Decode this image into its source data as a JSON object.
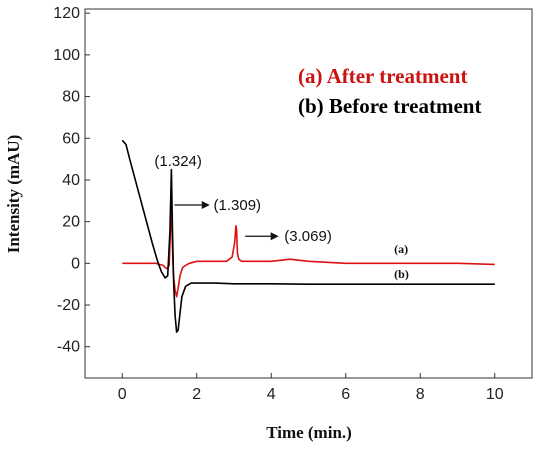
{
  "chart_data": {
    "type": "line",
    "title": "",
    "xlabel": "Time (min.)",
    "ylabel": "Intensity (mAU)",
    "xlim": [
      -1,
      11
    ],
    "ylim": [
      -55,
      122
    ],
    "x_ticks": [
      0,
      2,
      4,
      6,
      8,
      10
    ],
    "y_ticks": [
      -40,
      -20,
      0,
      20,
      40,
      60,
      80,
      100,
      120
    ],
    "legend": [
      {
        "label": "(a) After treatment",
        "color": "#cc1111"
      },
      {
        "label": "(b) Before treatment",
        "color": "#000000"
      }
    ],
    "series": [
      {
        "name": "(a) After treatment",
        "short_label": "(a)",
        "label_at": [
          7.3,
          5
        ],
        "color": "#dd1111",
        "x": [
          0,
          0.5,
          0.9,
          1.0,
          1.1,
          1.15,
          1.2,
          1.26,
          1.3,
          1.32,
          1.34,
          1.37,
          1.42,
          1.46,
          1.5,
          1.55,
          1.62,
          1.7,
          1.8,
          2.0,
          2.4,
          2.8,
          2.95,
          3.02,
          3.05,
          3.069,
          3.09,
          3.13,
          3.2,
          3.5,
          4.0,
          4.5,
          5.0,
          6.0,
          7.0,
          8.0,
          9.0,
          10.0
        ],
        "y": [
          0,
          0,
          0,
          -0.5,
          -1,
          -2,
          -2.5,
          -1,
          20,
          35,
          12,
          -5,
          -13,
          -16,
          -12,
          -6,
          -2,
          -1,
          0,
          1,
          1,
          1,
          3,
          10,
          18,
          16,
          5,
          2,
          1,
          1,
          1,
          2,
          1,
          0,
          0,
          0,
          0,
          -0.5
        ]
      },
      {
        "name": "(b) Before treatment",
        "short_label": "(b)",
        "label_at": [
          7.3,
          -7
        ],
        "color": "#000000",
        "x": [
          0,
          0.1,
          0.2,
          0.35,
          0.5,
          0.65,
          0.8,
          0.95,
          1.05,
          1.15,
          1.22,
          1.28,
          1.32,
          1.35,
          1.38,
          1.42,
          1.46,
          1.5,
          1.55,
          1.6,
          1.7,
          1.85,
          2.0,
          2.5,
          3.0,
          4.0,
          5.0,
          6.0,
          7.0,
          8.0,
          9.0,
          10.0
        ],
        "y": [
          59,
          57,
          50,
          40,
          30,
          20,
          10,
          1,
          -4,
          -7,
          -6,
          15,
          45,
          15,
          -10,
          -25,
          -33,
          -32,
          -24,
          -16,
          -11,
          -9.5,
          -9.5,
          -9.5,
          -9.8,
          -9.8,
          -10,
          -10,
          -10,
          -10,
          -10,
          -10
        ]
      }
    ],
    "annotations": [
      {
        "text": "(1.324)",
        "x": 1.5,
        "y": 49,
        "arrow": false
      },
      {
        "text": "(1.309)",
        "x": 2.45,
        "y": 28,
        "arrow": true,
        "arrow_from": [
          1.4,
          28
        ],
        "arrow_to": [
          2.35,
          28
        ]
      },
      {
        "text": "(3.069)",
        "x": 4.35,
        "y": 13,
        "arrow": true,
        "arrow_from": [
          3.3,
          13
        ],
        "arrow_to": [
          4.2,
          13
        ]
      }
    ],
    "grid": false
  }
}
